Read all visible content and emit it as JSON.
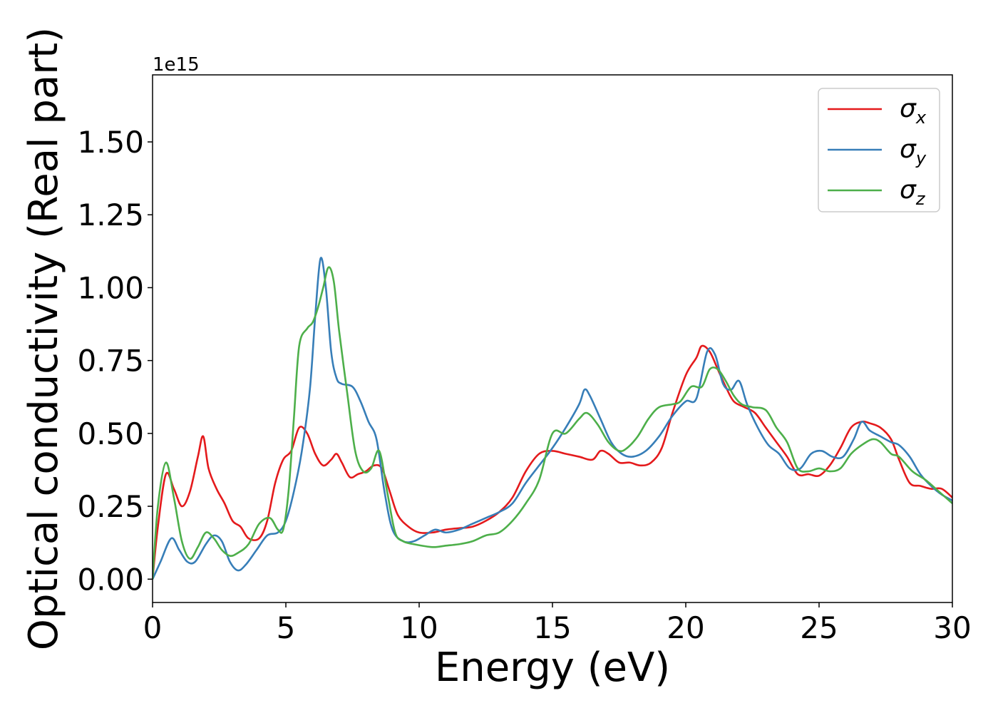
{
  "chart_data": {
    "type": "line",
    "title": "",
    "xlabel": "Energy (eV)",
    "ylabel": "Optical conductivity (Real part)",
    "y_offset_label": "1e15",
    "xlim": [
      0,
      30
    ],
    "ylim": [
      -0.08,
      1.73
    ],
    "x_ticks": [
      0,
      5,
      10,
      15,
      20,
      25,
      30
    ],
    "x_tick_labels": [
      "0",
      "5",
      "10",
      "15",
      "20",
      "25",
      "30"
    ],
    "y_ticks": [
      0.0,
      0.25,
      0.5,
      0.75,
      1.0,
      1.25,
      1.5
    ],
    "y_tick_labels": [
      "0.00",
      "0.25",
      "0.50",
      "0.75",
      "1.00",
      "1.25",
      "1.50"
    ],
    "grid": false,
    "legend_position": "top-right",
    "series": [
      {
        "name": "σx",
        "symbol": "σ",
        "subscript": "x",
        "color": "#e41a1c",
        "x": [
          0,
          0.2,
          0.5,
          0.8,
          1.1,
          1.4,
          1.7,
          1.9,
          2.1,
          2.4,
          2.7,
          3.0,
          3.3,
          3.6,
          4.0,
          4.3,
          4.6,
          4.9,
          5.2,
          5.5,
          5.8,
          6.1,
          6.4,
          6.7,
          6.9,
          7.1,
          7.4,
          7.7,
          8.0,
          8.3,
          8.6,
          8.9,
          9.2,
          9.6,
          10.0,
          10.5,
          11.0,
          11.5,
          12.0,
          12.5,
          13.0,
          13.5,
          14.0,
          14.5,
          15.0,
          15.5,
          16.0,
          16.5,
          16.8,
          17.1,
          17.5,
          17.9,
          18.3,
          18.7,
          19.1,
          19.5,
          20.0,
          20.4,
          20.6,
          20.9,
          21.2,
          21.5,
          21.8,
          22.2,
          22.6,
          23.0,
          23.4,
          23.8,
          24.2,
          24.6,
          25.0,
          25.4,
          25.8,
          26.2,
          26.6,
          26.9,
          27.3,
          27.7,
          28.0,
          28.4,
          28.8,
          29.2,
          29.6,
          30.0
        ],
        "y": [
          0.0,
          0.18,
          0.36,
          0.31,
          0.25,
          0.3,
          0.42,
          0.49,
          0.38,
          0.31,
          0.26,
          0.2,
          0.18,
          0.14,
          0.14,
          0.2,
          0.33,
          0.41,
          0.44,
          0.52,
          0.5,
          0.43,
          0.39,
          0.41,
          0.43,
          0.4,
          0.35,
          0.36,
          0.37,
          0.39,
          0.38,
          0.3,
          0.22,
          0.18,
          0.16,
          0.16,
          0.17,
          0.175,
          0.18,
          0.2,
          0.23,
          0.28,
          0.37,
          0.43,
          0.44,
          0.43,
          0.42,
          0.41,
          0.44,
          0.43,
          0.4,
          0.4,
          0.39,
          0.4,
          0.45,
          0.57,
          0.7,
          0.76,
          0.8,
          0.78,
          0.72,
          0.66,
          0.61,
          0.59,
          0.57,
          0.52,
          0.47,
          0.42,
          0.36,
          0.36,
          0.355,
          0.39,
          0.45,
          0.52,
          0.54,
          0.535,
          0.52,
          0.48,
          0.41,
          0.33,
          0.32,
          0.31,
          0.31,
          0.28
        ]
      },
      {
        "name": "σy",
        "symbol": "σ",
        "subscript": "y",
        "color": "#377eb8",
        "x": [
          0,
          0.3,
          0.7,
          1.0,
          1.3,
          1.6,
          2.0,
          2.3,
          2.6,
          2.9,
          3.2,
          3.5,
          3.9,
          4.3,
          4.7,
          5.0,
          5.3,
          5.6,
          5.9,
          6.1,
          6.3,
          6.5,
          6.7,
          6.9,
          7.1,
          7.5,
          7.8,
          8.1,
          8.4,
          8.7,
          9.0,
          9.4,
          9.8,
          10.2,
          10.6,
          11.0,
          11.5,
          12.0,
          12.5,
          13.0,
          13.5,
          14.0,
          14.5,
          15.0,
          15.5,
          16.0,
          16.2,
          16.4,
          16.8,
          17.2,
          17.6,
          18.0,
          18.5,
          19.0,
          19.5,
          20.0,
          20.4,
          20.8,
          21.1,
          21.4,
          21.7,
          22.0,
          22.3,
          22.7,
          23.1,
          23.5,
          23.9,
          24.3,
          24.7,
          25.1,
          25.5,
          25.9,
          26.3,
          26.6,
          26.9,
          27.3,
          27.7,
          28.0,
          28.4,
          28.8,
          29.2,
          29.6,
          30.0
        ],
        "y": [
          0.0,
          0.06,
          0.14,
          0.1,
          0.06,
          0.06,
          0.12,
          0.15,
          0.13,
          0.06,
          0.03,
          0.05,
          0.1,
          0.15,
          0.16,
          0.2,
          0.3,
          0.44,
          0.65,
          0.9,
          1.1,
          1.0,
          0.78,
          0.69,
          0.67,
          0.66,
          0.61,
          0.54,
          0.48,
          0.3,
          0.17,
          0.13,
          0.13,
          0.15,
          0.17,
          0.16,
          0.17,
          0.19,
          0.21,
          0.23,
          0.26,
          0.33,
          0.39,
          0.45,
          0.52,
          0.6,
          0.65,
          0.63,
          0.55,
          0.47,
          0.43,
          0.42,
          0.44,
          0.49,
          0.56,
          0.61,
          0.62,
          0.78,
          0.77,
          0.67,
          0.65,
          0.68,
          0.6,
          0.52,
          0.46,
          0.43,
          0.38,
          0.38,
          0.43,
          0.44,
          0.42,
          0.42,
          0.48,
          0.54,
          0.51,
          0.49,
          0.47,
          0.46,
          0.42,
          0.36,
          0.32,
          0.29,
          0.27
        ]
      },
      {
        "name": "σz",
        "symbol": "σ",
        "subscript": "z",
        "color": "#4daf4a",
        "x": [
          0,
          0.2,
          0.5,
          0.8,
          1.1,
          1.4,
          1.7,
          2.0,
          2.3,
          2.6,
          2.9,
          3.2,
          3.6,
          4.0,
          4.4,
          4.7,
          4.9,
          5.1,
          5.3,
          5.5,
          5.8,
          6.0,
          6.2,
          6.4,
          6.6,
          6.8,
          7.0,
          7.3,
          7.6,
          7.9,
          8.2,
          8.5,
          8.8,
          9.1,
          9.4,
          9.8,
          10.5,
          11.0,
          11.5,
          12.0,
          12.5,
          13.0,
          13.5,
          14.0,
          14.5,
          15.0,
          15.5,
          16.0,
          16.3,
          16.7,
          17.1,
          17.5,
          17.8,
          18.2,
          18.6,
          19.0,
          19.5,
          19.8,
          20.2,
          20.6,
          20.9,
          21.2,
          21.5,
          21.8,
          22.1,
          22.5,
          23.0,
          23.4,
          23.8,
          24.2,
          24.6,
          25.0,
          25.4,
          25.8,
          26.2,
          26.6,
          27.0,
          27.3,
          27.7,
          28.0,
          28.5,
          29.0,
          29.5,
          30.0
        ],
        "y": [
          0.0,
          0.25,
          0.4,
          0.28,
          0.13,
          0.07,
          0.11,
          0.16,
          0.14,
          0.1,
          0.08,
          0.09,
          0.12,
          0.19,
          0.21,
          0.17,
          0.17,
          0.3,
          0.55,
          0.8,
          0.86,
          0.88,
          0.93,
          1.0,
          1.07,
          1.02,
          0.85,
          0.64,
          0.44,
          0.37,
          0.38,
          0.44,
          0.3,
          0.16,
          0.13,
          0.12,
          0.11,
          0.115,
          0.12,
          0.13,
          0.15,
          0.16,
          0.2,
          0.26,
          0.34,
          0.5,
          0.5,
          0.55,
          0.57,
          0.53,
          0.47,
          0.44,
          0.45,
          0.49,
          0.55,
          0.59,
          0.6,
          0.61,
          0.66,
          0.66,
          0.72,
          0.72,
          0.68,
          0.63,
          0.6,
          0.59,
          0.58,
          0.52,
          0.47,
          0.38,
          0.37,
          0.38,
          0.37,
          0.38,
          0.43,
          0.46,
          0.48,
          0.47,
          0.43,
          0.42,
          0.37,
          0.34,
          0.3,
          0.26
        ]
      }
    ]
  }
}
